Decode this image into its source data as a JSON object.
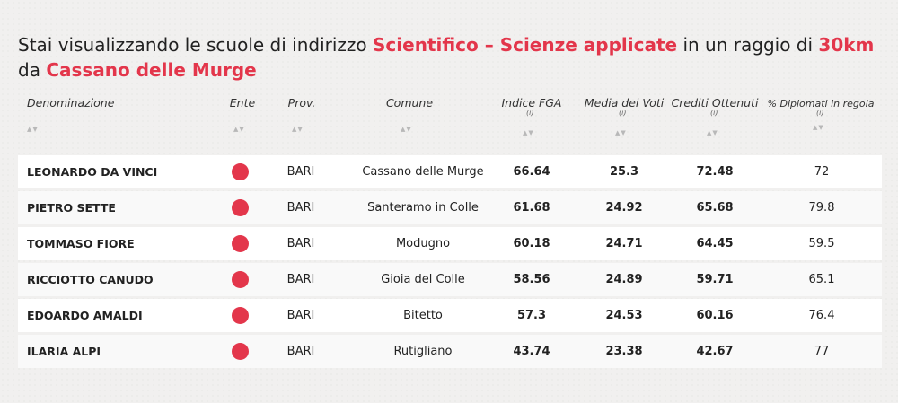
{
  "title": {
    "prefix": "Stai visualizzando le scuole di indirizzo ",
    "indirizzo": "Scientifico – Scienze applicate",
    "middle": " in un raggio di ",
    "raggio": "30km",
    "suffix": " da ",
    "comune": "Cassano delle Murge"
  },
  "columns": {
    "denominazione": "Denominazione",
    "ente": "Ente",
    "prov": "Prov.",
    "comune": "Comune",
    "indice_fga": "Indice FGA",
    "media_voti": "Media dei Voti",
    "crediti": "Crediti Ottenuti",
    "diplomati": "% Diplomati in regola",
    "info_icon": "(i)",
    "sort_icon": "▲▼"
  },
  "colors": {
    "accent": "#e3364b"
  },
  "rows": [
    {
      "denominazione": "LEONARDO DA VINCI",
      "prov": "BARI",
      "comune": "Cassano delle Murge",
      "indice_fga": "66.64",
      "media_voti": "25.3",
      "crediti": "72.48",
      "diplomati": "72"
    },
    {
      "denominazione": "PIETRO SETTE",
      "prov": "BARI",
      "comune": "Santeramo in Colle",
      "indice_fga": "61.68",
      "media_voti": "24.92",
      "crediti": "65.68",
      "diplomati": "79.8"
    },
    {
      "denominazione": "TOMMASO FIORE",
      "prov": "BARI",
      "comune": "Modugno",
      "indice_fga": "60.18",
      "media_voti": "24.71",
      "crediti": "64.45",
      "diplomati": "59.5"
    },
    {
      "denominazione": "RICCIOTTO CANUDO",
      "prov": "BARI",
      "comune": "Gioia del Colle",
      "indice_fga": "58.56",
      "media_voti": "24.89",
      "crediti": "59.71",
      "diplomati": "65.1"
    },
    {
      "denominazione": "EDOARDO AMALDI",
      "prov": "BARI",
      "comune": "Bitetto",
      "indice_fga": "57.3",
      "media_voti": "24.53",
      "crediti": "60.16",
      "diplomati": "76.4"
    },
    {
      "denominazione": "ILARIA ALPI",
      "prov": "BARI",
      "comune": "Rutigliano",
      "indice_fga": "43.74",
      "media_voti": "23.38",
      "crediti": "42.67",
      "diplomati": "77"
    }
  ]
}
